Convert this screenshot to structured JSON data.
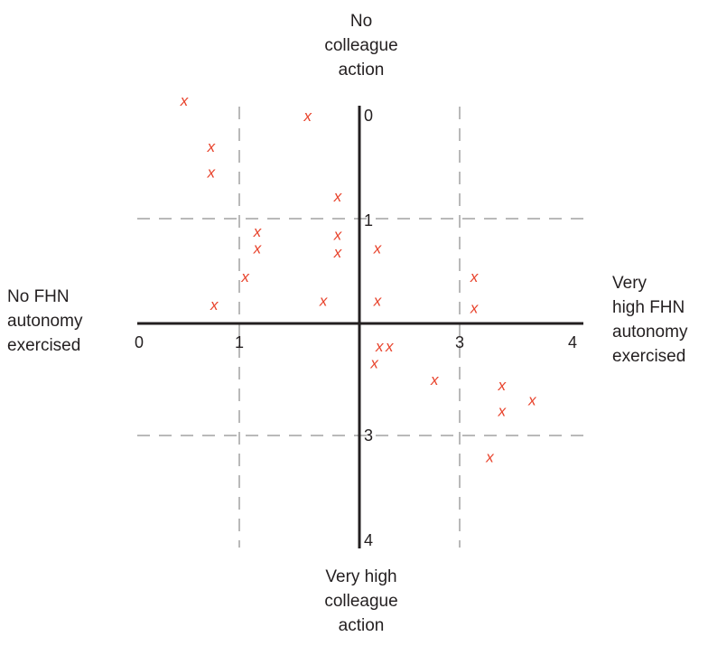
{
  "chart_data": {
    "type": "scatter",
    "title": "",
    "marker": "x",
    "colors": {
      "marker": "#e8432c",
      "axis": "#231f20",
      "guide": "#b9b9b9",
      "text": "#231f20"
    },
    "grid": false,
    "x_axis": {
      "range": [
        0,
        4
      ],
      "tick_labels": [
        "0",
        "1",
        "3",
        "4"
      ],
      "label_low": [
        "No FHN",
        "autonomy",
        "exercised"
      ],
      "label_high": [
        "Very",
        "high FHN",
        "autonomy",
        "exercised"
      ]
    },
    "y_axis": {
      "range": [
        0,
        4
      ],
      "inverted": true,
      "tick_labels": [
        "0",
        "1",
        "3",
        "4"
      ],
      "label_top": [
        "No",
        "colleague",
        "action"
      ],
      "label_bottom": [
        "Very high",
        "colleague",
        "action"
      ]
    },
    "guide_lines": {
      "x": [
        1,
        3
      ],
      "y": [
        1,
        3
      ]
    },
    "points": [
      {
        "x": 0.45,
        "y": -0.15
      },
      {
        "x": 0.72,
        "y": 0.3
      },
      {
        "x": 0.72,
        "y": 0.55
      },
      {
        "x": 1.57,
        "y": 0.0
      },
      {
        "x": 1.82,
        "y": 0.78
      },
      {
        "x": 1.15,
        "y": 1.12
      },
      {
        "x": 1.15,
        "y": 1.28
      },
      {
        "x": 1.82,
        "y": 1.15
      },
      {
        "x": 1.82,
        "y": 1.32
      },
      {
        "x": 2.18,
        "y": 1.28
      },
      {
        "x": 1.05,
        "y": 1.55
      },
      {
        "x": 0.75,
        "y": 1.82
      },
      {
        "x": 1.7,
        "y": 1.78
      },
      {
        "x": 2.18,
        "y": 1.78
      },
      {
        "x": 3.12,
        "y": 1.55
      },
      {
        "x": 3.12,
        "y": 1.85
      },
      {
        "x": 2.2,
        "y": 2.2
      },
      {
        "x": 2.3,
        "y": 2.2
      },
      {
        "x": 2.15,
        "y": 2.35
      },
      {
        "x": 2.75,
        "y": 2.5
      },
      {
        "x": 3.35,
        "y": 2.55
      },
      {
        "x": 3.35,
        "y": 2.78
      },
      {
        "x": 3.6,
        "y": 2.68
      },
      {
        "x": 3.25,
        "y": 3.2
      }
    ]
  }
}
